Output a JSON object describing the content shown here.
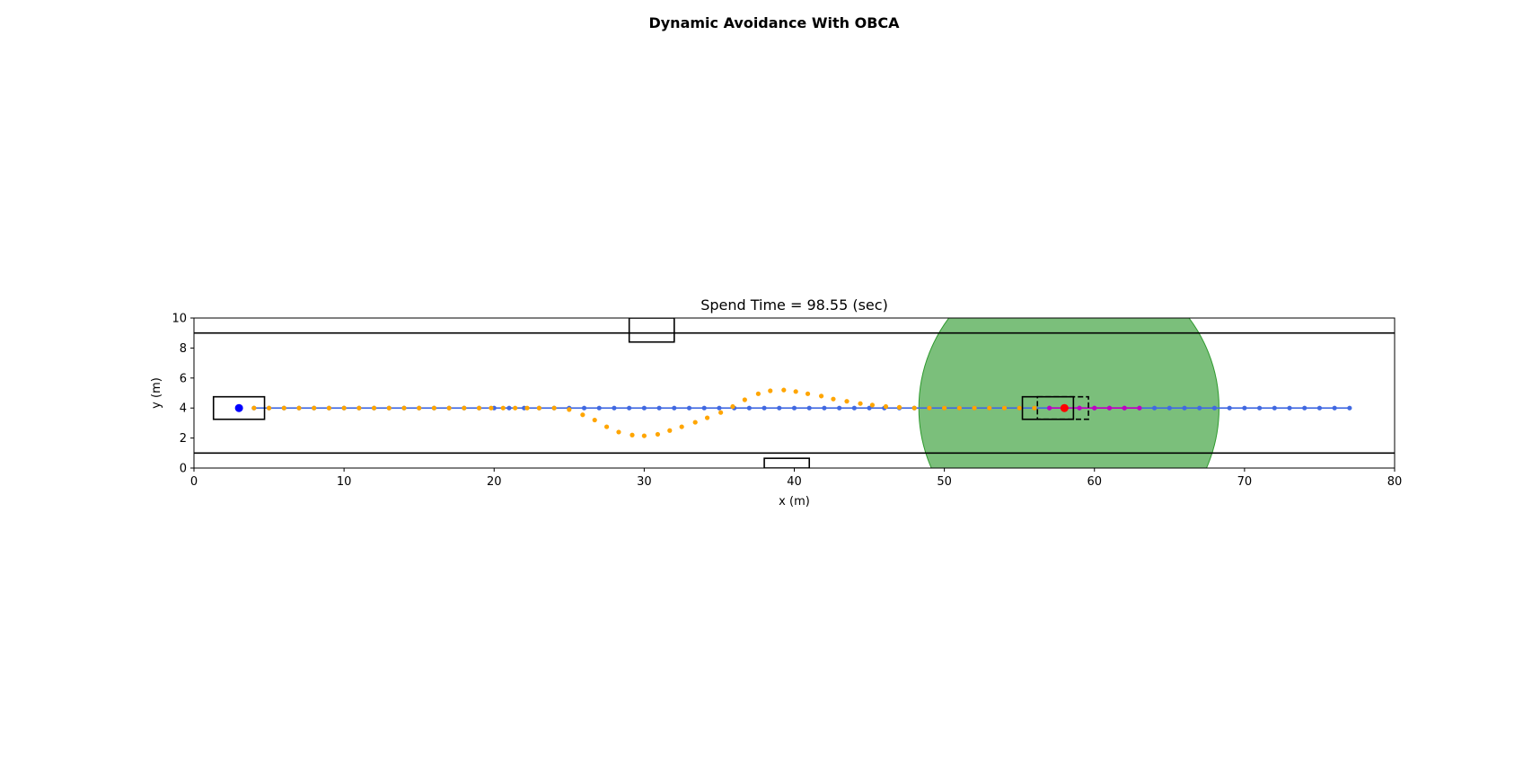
{
  "figure": {
    "suptitle": "Dynamic Avoidance With OBCA"
  },
  "chart_data": {
    "type": "scatter",
    "title": "Spend Time = 98.55 (sec)",
    "xlabel": "x (m)",
    "ylabel": "y (m)",
    "xlim": [
      0,
      80
    ],
    "ylim": [
      0,
      10
    ],
    "xticks": [
      0,
      10,
      20,
      30,
      40,
      50,
      60,
      70,
      80
    ],
    "yticks": [
      0,
      2,
      4,
      6,
      8,
      10
    ],
    "grid": false,
    "colors": {
      "reference_path": "#4169e1",
      "avoid_path": "#ffa500",
      "predicted_horizon": "#c000c0",
      "start_point": "#0000ff",
      "ego_point": "#ff0000",
      "safety_circle": "#2e9a2e",
      "boundary": "#000000"
    },
    "road_boundaries": [
      {
        "y": 9.0,
        "x": [
          0,
          80
        ]
      },
      {
        "y": 1.0,
        "x": [
          0,
          80
        ]
      }
    ],
    "static_obstacles": [
      {
        "x": [
          29,
          32
        ],
        "y": [
          8.4,
          10
        ]
      },
      {
        "x": [
          38,
          41
        ],
        "y": [
          0,
          0.65
        ]
      }
    ],
    "reference_path": {
      "x_start": 4,
      "x_end": 77,
      "step": 1,
      "y": 4
    },
    "avoid_path": {
      "x": [
        4.0,
        5.0,
        6.0,
        7.0,
        8.0,
        9.0,
        10.0,
        11.0,
        12.0,
        13.0,
        14.0,
        15.0,
        16.0,
        17.0,
        18.0,
        19.0,
        19.8,
        20.6,
        21.4,
        22.2,
        23.0,
        24.0,
        25.0,
        25.9,
        26.7,
        27.5,
        28.3,
        29.2,
        30.0,
        30.9,
        31.7,
        32.5,
        33.4,
        34.2,
        35.1,
        35.9,
        36.7,
        37.6,
        38.4,
        39.3,
        40.1,
        40.9,
        41.8,
        42.6,
        43.5,
        44.4,
        45.2,
        46.1,
        47.0,
        48.0,
        49.0,
        50.0,
        51.0,
        52.0,
        53.0,
        54.0,
        55.0,
        56.0
      ],
      "y": [
        4.0,
        4.0,
        4.0,
        4.0,
        4.0,
        4.0,
        4.0,
        4.0,
        4.0,
        4.0,
        4.0,
        4.0,
        4.0,
        4.0,
        4.0,
        4.0,
        4.0,
        4.0,
        4.0,
        4.0,
        4.0,
        4.0,
        3.9,
        3.55,
        3.2,
        2.75,
        2.4,
        2.2,
        2.15,
        2.25,
        2.5,
        2.75,
        3.05,
        3.35,
        3.7,
        4.1,
        4.55,
        4.95,
        5.15,
        5.2,
        5.1,
        4.95,
        4.8,
        4.6,
        4.45,
        4.3,
        4.2,
        4.1,
        4.05,
        4.0,
        4.0,
        4.0,
        4.0,
        4.0,
        4.0,
        4.0,
        4.0,
        4.0
      ]
    },
    "predicted_horizon": {
      "x_start": 57,
      "x_end": 63,
      "step": 1,
      "y": 4
    },
    "start_point": {
      "x": 3,
      "y": 4
    },
    "ego_point": {
      "x": 58,
      "y": 4
    },
    "start_vehicle": {
      "x": [
        1.3,
        4.7
      ],
      "y": [
        3.25,
        4.75
      ]
    },
    "ego_vehicle": {
      "x": [
        55.2,
        58.6
      ],
      "y": [
        3.25,
        4.75
      ]
    },
    "predicted_vehicle": {
      "x": [
        56.2,
        59.6
      ],
      "y": [
        3.25,
        4.75
      ]
    },
    "safety_circle": {
      "cx": 58.3,
      "cy": 4.0,
      "r": 10.0
    }
  }
}
